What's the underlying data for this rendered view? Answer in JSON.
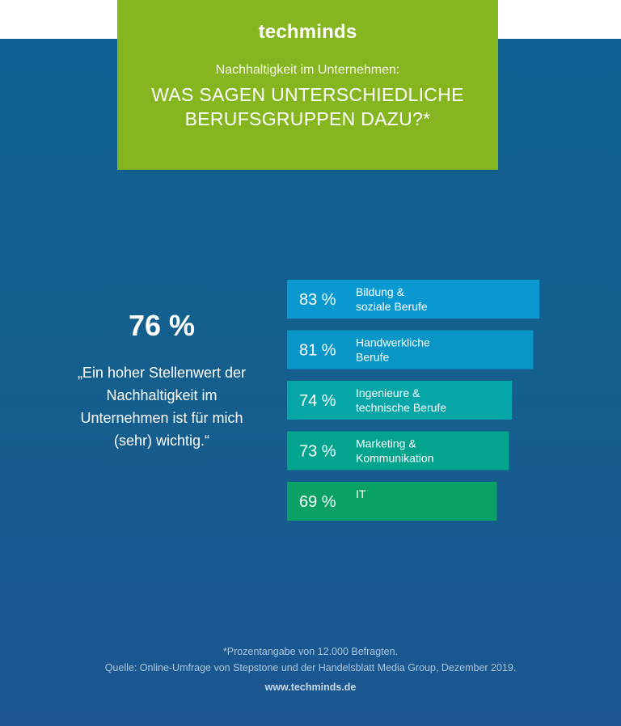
{
  "header": {
    "logo": "techminds",
    "subtitle": "Nachhaltigkeit im Unternehmen:",
    "title_line1": "WAS SAGEN UNTERSCHIEDLICHE",
    "title_line2": "BERUFSGRUPPEN DAZU?*"
  },
  "summary": {
    "percent": "76 %",
    "quote": "„Ein hoher Stellenwert der Nachhaltigkeit im Unternehmen ist für mich (sehr) wichtig.“"
  },
  "chart_data": {
    "type": "bar",
    "orientation": "horizontal",
    "categories": [
      [
        "Bildung &",
        "soziale Berufe"
      ],
      [
        "Handwerkliche",
        "Berufe"
      ],
      [
        "Ingenieure &",
        "technische Berufe"
      ],
      [
        "Marketing &",
        "Kommunikation"
      ],
      [
        "IT"
      ]
    ],
    "values": [
      83,
      81,
      74,
      73,
      69
    ],
    "value_labels": [
      "83 %",
      "81 %",
      "74 %",
      "73 %",
      "69 %"
    ],
    "colors": [
      "#0a98d0",
      "#0996c6",
      "#06a6a8",
      "#03a48e",
      "#0aa165"
    ],
    "xlim": [
      0,
      100
    ]
  },
  "footer": {
    "footnote": "*Prozentangabe von 12.000 Befragten.",
    "source": "Quelle: Online-Umfrage von Stepstone und der Handelsblatt Media Group, Dezember 2019.",
    "url": "www.techminds.de"
  }
}
